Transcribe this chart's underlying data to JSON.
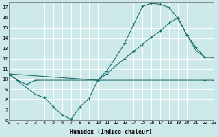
{
  "xlabel": "Humidex (Indice chaleur)",
  "bg_color": "#cee9e9",
  "grid_color": "#ffffff",
  "line_color": "#1a6e6e",
  "line1_x": [
    0,
    1,
    2,
    3,
    10,
    11,
    12,
    13,
    14,
    15,
    16,
    17,
    18,
    19,
    20,
    21,
    22,
    23
  ],
  "line1_y": [
    10.5,
    9.9,
    9.5,
    9.9,
    9.9,
    10.8,
    12.1,
    13.5,
    15.3,
    17.1,
    17.4,
    17.3,
    17.0,
    15.9,
    14.3,
    12.8,
    12.1,
    12.1
  ],
  "line2_x": [
    0,
    3,
    4,
    5,
    6,
    7,
    8,
    9,
    10,
    22,
    23
  ],
  "line2_y": [
    10.5,
    8.5,
    8.2,
    7.3,
    6.5,
    6.1,
    7.3,
    8.1,
    9.9,
    9.9,
    9.9
  ],
  "line3_x": [
    0,
    10,
    11,
    12,
    13,
    14,
    15,
    16,
    17,
    18,
    19,
    20,
    21,
    22,
    23
  ],
  "line3_y": [
    10.5,
    9.9,
    10.5,
    11.3,
    12.0,
    12.7,
    13.4,
    14.1,
    14.7,
    15.5,
    16.0,
    14.3,
    13.1,
    12.1,
    12.1
  ],
  "xlim": [
    0,
    23
  ],
  "ylim": [
    6,
    17.5
  ],
  "yticks": [
    6,
    7,
    8,
    9,
    10,
    11,
    12,
    13,
    14,
    15,
    16,
    17
  ],
  "xticks": [
    0,
    1,
    2,
    3,
    4,
    5,
    6,
    7,
    8,
    9,
    10,
    11,
    12,
    13,
    14,
    15,
    16,
    17,
    18,
    19,
    20,
    21,
    22,
    23
  ],
  "tick_fontsize": 5,
  "xlabel_fontsize": 6
}
